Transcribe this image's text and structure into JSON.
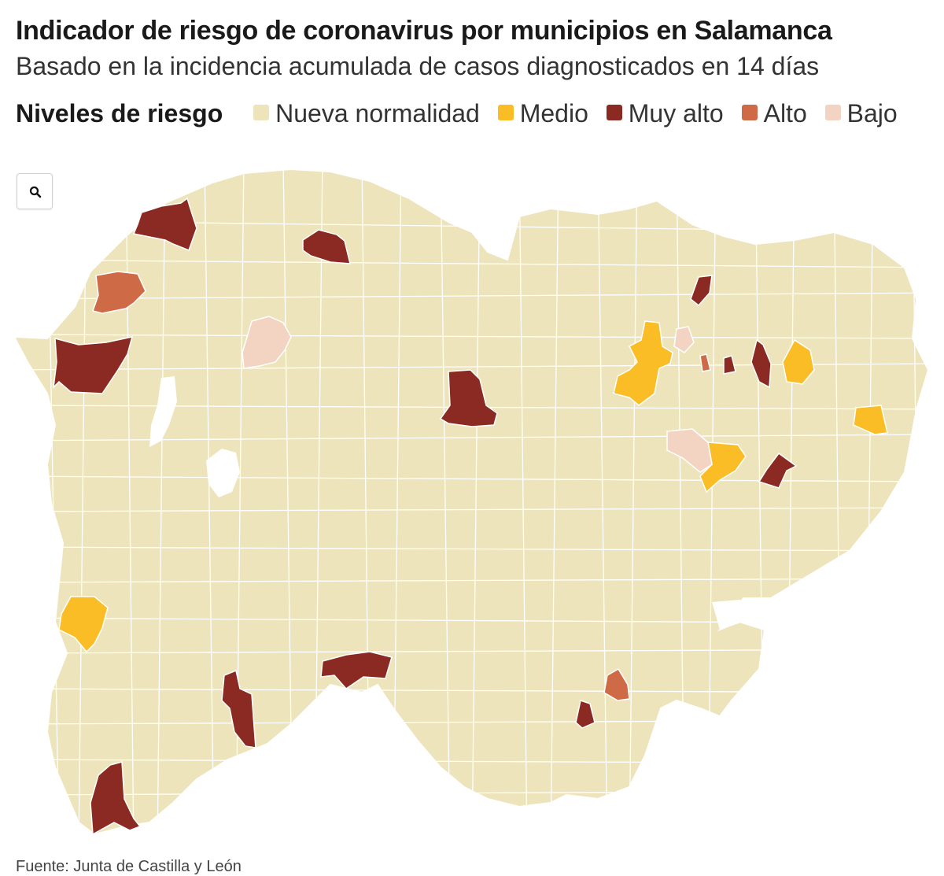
{
  "header": {
    "title": "Indicador de riesgo de coronavirus por municipios en Salamanca",
    "subtitle": "Basado en la incidencia acumulada de casos diagnosticados en 14 días"
  },
  "legend": {
    "title": "Niveles de riesgo",
    "items": [
      {
        "label": "Nueva normalidad",
        "color": "#ede4bb"
      },
      {
        "label": "Medio",
        "color": "#fbbd25"
      },
      {
        "label": "Muy alto",
        "color": "#8a2a22"
      },
      {
        "label": "Alto",
        "color": "#cf6a47"
      },
      {
        "label": "Bajo",
        "color": "#f3d4c3"
      }
    ]
  },
  "map": {
    "zoom_icon": "search-icon",
    "background_color": "#ede4bb",
    "border_color": "#ffffff"
  },
  "footer": {
    "source": "Fuente: Junta de Castilla y León"
  }
}
